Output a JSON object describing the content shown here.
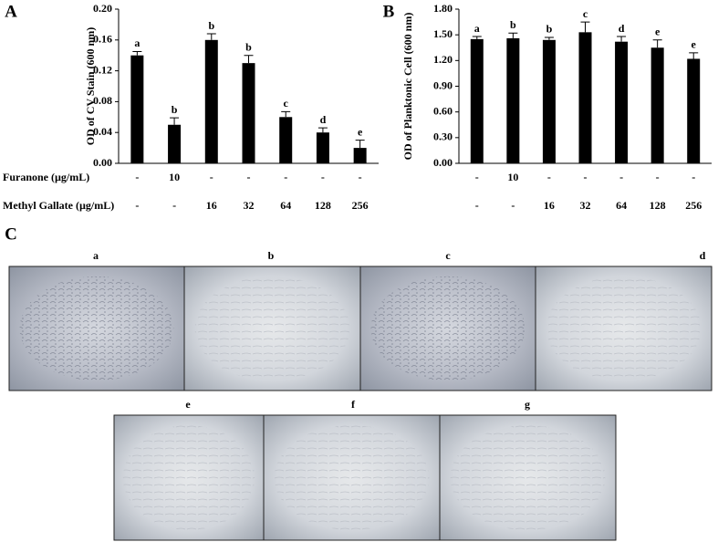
{
  "chart_data": [
    {
      "type": "bar",
      "panel": "A",
      "y_label": "OD of CV Stain  (600 nm)",
      "color": "#000000",
      "values": [
        0.14,
        0.05,
        0.16,
        0.13,
        0.06,
        0.04,
        0.02
      ],
      "errors": [
        0.005,
        0.009,
        0.008,
        0.01,
        0.007,
        0.006,
        0.01
      ],
      "annotations": [
        "a",
        "b",
        "b",
        "b",
        "c",
        "d",
        "e"
      ],
      "ylim": [
        0,
        0.2
      ],
      "yticks": [
        {
          "value": 0,
          "label": "0.00"
        },
        0.04,
        0.08,
        0.12,
        0.16,
        {
          "value": 0.2,
          "label": "0.20"
        }
      ]
    },
    {
      "type": "bar",
      "panel": "B",
      "y_label": "OD of Planktonic Cell (600 nm)",
      "color": "#000000",
      "values": [
        1.45,
        1.46,
        1.44,
        1.53,
        1.42,
        1.35,
        1.22
      ],
      "errors": [
        0.03,
        0.06,
        0.03,
        0.12,
        0.06,
        0.09,
        0.07
      ],
      "annotations": [
        "a",
        "b",
        "b",
        "c",
        "d",
        "e",
        "e"
      ],
      "ylim": [
        0,
        1.8
      ],
      "yticks": [
        {
          "value": 0,
          "label": "0.00"
        },
        {
          "value": 0.3,
          "label": "0.30"
        },
        {
          "value": 0.6,
          "label": "0.60"
        },
        {
          "value": 0.9,
          "label": "0.90"
        },
        {
          "value": 1.2,
          "label": "1.20"
        },
        {
          "value": 1.5,
          "label": "1.50"
        },
        {
          "value": 1.8,
          "label": "1.80"
        }
      ]
    }
  ],
  "treatments": [
    {
      "label": "Furanone (µg/mL)",
      "values": [
        "-",
        "10",
        "-",
        "-",
        "-",
        "-",
        "-"
      ]
    },
    {
      "label": "Methyl Gallate (µg/mL)",
      "values": [
        "-",
        "-",
        "16",
        "32",
        "64",
        "128",
        "256"
      ]
    }
  ],
  "panel_c": {
    "label": "C",
    "images": [
      "a",
      "b",
      "c",
      "d",
      "e",
      "f",
      "g"
    ]
  }
}
